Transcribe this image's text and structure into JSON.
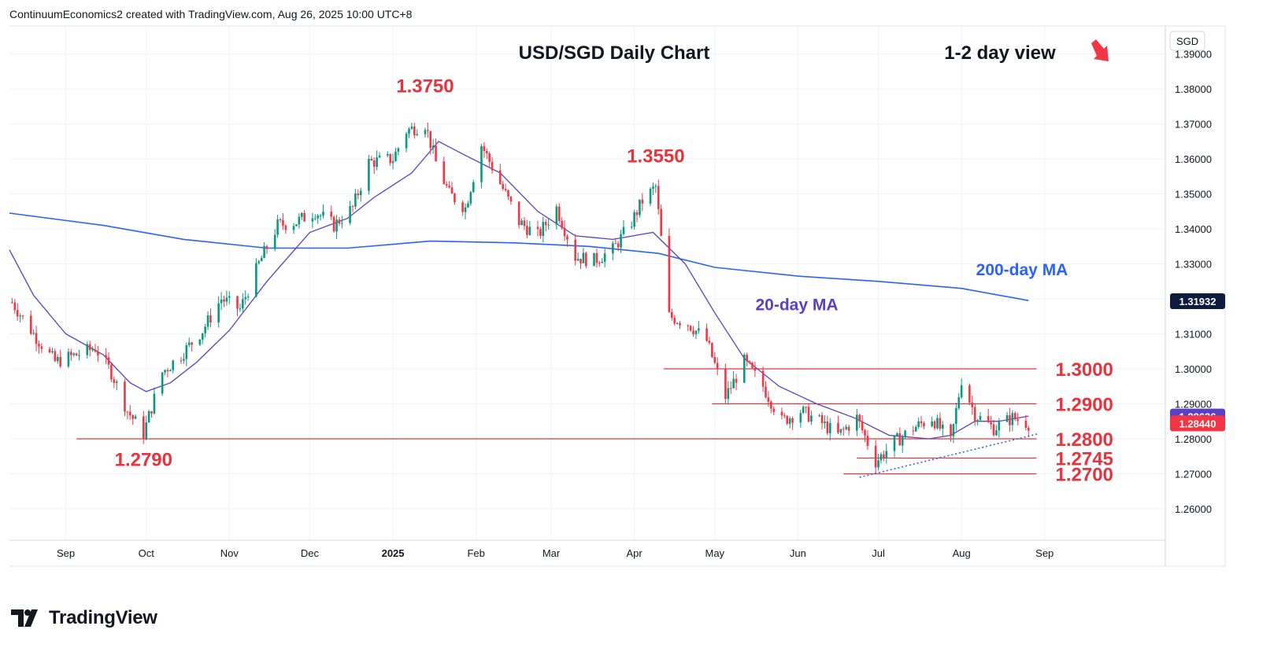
{
  "header": {
    "text": "ContinuumEconomics2 created with TradingView.com, Aug 26, 2025 10:00 UTC+8"
  },
  "footer": {
    "brand": "TradingView"
  },
  "colors": {
    "up": "#089981",
    "down": "#f23645",
    "ma20": "#5b3fc4",
    "ma200": "#2962ff",
    "level": "#e8333c",
    "trend": "#2962ff",
    "price_tag": "#f23645",
    "ma200_tag": "#0d1b3e"
  },
  "chart_data": {
    "type": "candlestick",
    "title": "USD/SGD Daily Chart",
    "subtitle": "1-2 day view",
    "currency": "SGD",
    "ylim": [
      1.251,
      1.398
    ],
    "y_ticks": [
      "1.39000",
      "1.38000",
      "1.37000",
      "1.36000",
      "1.35000",
      "1.34000",
      "1.33000",
      "1.32000",
      "1.31000",
      "1.30000",
      "1.29000",
      "1.28000",
      "1.27000",
      "1.26000"
    ],
    "x_ticks": [
      {
        "label": "Sep",
        "date": "2024-09-01"
      },
      {
        "label": "Oct",
        "date": "2024-10-01"
      },
      {
        "label": "Nov",
        "date": "2024-11-01"
      },
      {
        "label": "Dec",
        "date": "2024-12-01"
      },
      {
        "label": "2025",
        "date": "2025-01-01",
        "bold": true
      },
      {
        "label": "Feb",
        "date": "2025-02-01"
      },
      {
        "label": "Mar",
        "date": "2025-03-01"
      },
      {
        "label": "Apr",
        "date": "2025-04-01"
      },
      {
        "label": "May",
        "date": "2025-05-01"
      },
      {
        "label": "Jun",
        "date": "2025-06-01"
      },
      {
        "label": "Jul",
        "date": "2025-07-01"
      },
      {
        "label": "Aug",
        "date": "2025-08-01"
      },
      {
        "label": "Sep",
        "date": "2025-09-01"
      }
    ],
    "x_range": [
      "2024-08-11",
      "2025-10-16"
    ],
    "path": [
      [
        "2024-08-12",
        1.319
      ],
      [
        "2024-08-20",
        1.31
      ],
      [
        "2024-08-28",
        1.302
      ],
      [
        "2024-09-05",
        1.304
      ],
      [
        "2024-09-12",
        1.306
      ],
      [
        "2024-09-18",
        1.299
      ],
      [
        "2024-09-24",
        1.288
      ],
      [
        "2024-09-30",
        1.2815
      ],
      [
        "2024-10-07",
        1.299
      ],
      [
        "2024-10-14",
        1.304
      ],
      [
        "2024-10-22",
        1.311
      ],
      [
        "2024-10-29",
        1.32
      ],
      [
        "2024-11-05",
        1.317
      ],
      [
        "2024-11-12",
        1.33
      ],
      [
        "2024-11-19",
        1.341
      ],
      [
        "2024-11-26",
        1.342
      ],
      [
        "2024-12-03",
        1.345
      ],
      [
        "2024-12-10",
        1.341
      ],
      [
        "2024-12-17",
        1.346
      ],
      [
        "2024-12-23",
        1.359
      ],
      [
        "2025-01-01",
        1.36
      ],
      [
        "2025-01-06",
        1.368
      ],
      [
        "2025-01-13",
        1.37
      ],
      [
        "2025-01-17",
        1.359
      ],
      [
        "2025-01-22",
        1.35
      ],
      [
        "2025-01-28",
        1.346
      ],
      [
        "2025-02-03",
        1.364
      ],
      [
        "2025-02-10",
        1.353
      ],
      [
        "2025-02-17",
        1.342
      ],
      [
        "2025-02-24",
        1.338
      ],
      [
        "2025-03-03",
        1.346
      ],
      [
        "2025-03-10",
        1.332
      ],
      [
        "2025-03-17",
        1.331
      ],
      [
        "2025-03-24",
        1.334
      ],
      [
        "2025-03-31",
        1.342
      ],
      [
        "2025-04-04",
        1.348
      ],
      [
        "2025-04-09",
        1.352
      ],
      [
        "2025-04-14",
        1.315
      ],
      [
        "2025-04-21",
        1.313
      ],
      [
        "2025-04-28",
        1.308
      ],
      [
        "2025-05-05",
        1.292
      ],
      [
        "2025-05-12",
        1.302
      ],
      [
        "2025-05-19",
        1.295
      ],
      [
        "2025-05-26",
        1.285
      ],
      [
        "2025-06-02",
        1.288
      ],
      [
        "2025-06-09",
        1.285
      ],
      [
        "2025-06-16",
        1.281
      ],
      [
        "2025-06-23",
        1.286
      ],
      [
        "2025-06-30",
        1.2735
      ],
      [
        "2025-07-07",
        1.279
      ],
      [
        "2025-07-14",
        1.283
      ],
      [
        "2025-07-21",
        1.286
      ],
      [
        "2025-07-28",
        1.279
      ],
      [
        "2025-08-01",
        1.297
      ],
      [
        "2025-08-06",
        1.287
      ],
      [
        "2025-08-13",
        1.283
      ],
      [
        "2025-08-20",
        1.286
      ],
      [
        "2025-08-26",
        1.2844
      ]
    ],
    "ma20_path": [
      [
        "2024-08-11",
        1.334
      ],
      [
        "2024-08-20",
        1.321
      ],
      [
        "2024-09-01",
        1.31
      ],
      [
        "2024-09-15",
        1.304
      ],
      [
        "2024-09-25",
        1.296
      ],
      [
        "2024-10-01",
        1.2935
      ],
      [
        "2024-10-10",
        1.296
      ],
      [
        "2024-10-20",
        1.302
      ],
      [
        "2024-11-01",
        1.311
      ],
      [
        "2024-11-15",
        1.325
      ],
      [
        "2024-12-01",
        1.339
      ],
      [
        "2024-12-15",
        1.343
      ],
      [
        "2024-12-25",
        1.349
      ],
      [
        "2025-01-08",
        1.356
      ],
      [
        "2025-01-18",
        1.365
      ],
      [
        "2025-01-28",
        1.361
      ],
      [
        "2025-02-10",
        1.356
      ],
      [
        "2025-02-24",
        1.345
      ],
      [
        "2025-03-10",
        1.338
      ],
      [
        "2025-03-24",
        1.337
      ],
      [
        "2025-04-08",
        1.339
      ],
      [
        "2025-04-20",
        1.33
      ],
      [
        "2025-05-01",
        1.316
      ],
      [
        "2025-05-12",
        1.303
      ],
      [
        "2025-05-25",
        1.295
      ],
      [
        "2025-06-08",
        1.29
      ],
      [
        "2025-06-22",
        1.286
      ],
      [
        "2025-07-05",
        1.281
      ],
      [
        "2025-07-20",
        1.28
      ],
      [
        "2025-07-28",
        1.281
      ],
      [
        "2025-08-06",
        1.285
      ],
      [
        "2025-08-15",
        1.285
      ],
      [
        "2025-08-26",
        1.2865
      ]
    ],
    "ma200_path": [
      [
        "2024-08-11",
        1.3445
      ],
      [
        "2024-09-15",
        1.341
      ],
      [
        "2024-10-15",
        1.337
      ],
      [
        "2024-11-15",
        1.3345
      ],
      [
        "2024-12-15",
        1.3345
      ],
      [
        "2025-01-15",
        1.3365
      ],
      [
        "2025-02-15",
        1.336
      ],
      [
        "2025-03-15",
        1.335
      ],
      [
        "2025-04-10",
        1.333
      ],
      [
        "2025-05-01",
        1.329
      ],
      [
        "2025-06-01",
        1.3265
      ],
      [
        "2025-07-01",
        1.325
      ],
      [
        "2025-08-01",
        1.323
      ],
      [
        "2025-08-26",
        1.3195
      ]
    ],
    "levels": [
      {
        "label": "1.3000",
        "value": 1.3,
        "from": "2025-04-12"
      },
      {
        "label": "1.2900",
        "value": 1.29,
        "from": "2025-04-30"
      },
      {
        "label": "1.2800",
        "value": 1.28,
        "from": "2024-09-05"
      },
      {
        "label": "1.2745",
        "value": 1.2745,
        "from": "2025-06-23"
      },
      {
        "label": "1.2700",
        "value": 1.27,
        "from": "2025-06-18"
      }
    ],
    "level_end": "2025-08-29",
    "trendline": {
      "from": [
        "2025-06-24",
        1.269
      ],
      "to": [
        "2025-08-30",
        1.2815
      ]
    },
    "annotations": [
      {
        "label": "1.3750",
        "date": "2025-01-13",
        "value": 1.375
      },
      {
        "label": "1.3550",
        "date": "2025-04-09",
        "value": 1.355
      },
      {
        "label": "1.2790",
        "date": "2024-09-30",
        "value": 1.279
      }
    ],
    "ma_labels": {
      "ma20": "20-day MA",
      "ma200": "200-day MA"
    },
    "last_price": {
      "label": "1.28440",
      "value": 1.2844
    },
    "ma20_tag": {
      "label": "1.28636",
      "value": 1.28636
    },
    "ma200_tag": {
      "label": "1.31932",
      "value": 1.31932
    }
  }
}
